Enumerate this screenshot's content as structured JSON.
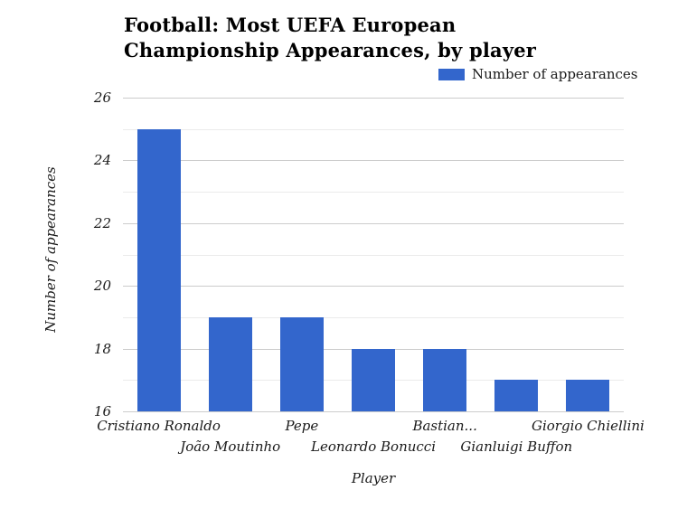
{
  "title": "Football: Most UEFA European Championship Appearances, by player",
  "legend": {
    "label": "Number of appearances",
    "swatch_color": "#3366cc"
  },
  "axes": {
    "y_title": "Number of appearances",
    "x_title": "Player"
  },
  "colors": {
    "bar": "#3366cc",
    "major_gridline": "#cccccc",
    "minor_gridline": "#ebebeb",
    "text": "#1a1a1a",
    "background": "#ffffff"
  },
  "chart_data": {
    "type": "bar",
    "title": "Football: Most UEFA European Championship Appearances, by player",
    "categories": [
      "Cristiano Ronaldo",
      "João Moutinho",
      "Pepe",
      "Leonardo Bonucci",
      "Bastian...",
      "Gianluigi Buffon",
      "Giorgio Chiellini"
    ],
    "values": [
      25,
      19,
      19,
      18,
      18,
      17,
      17
    ],
    "series_name": "Number of appearances",
    "xlabel": "Player",
    "ylabel": "Number of appearances",
    "ylim": [
      16,
      26
    ],
    "yticks": [
      16,
      18,
      20,
      22,
      24,
      26
    ],
    "minor_gridlines": [
      17,
      19,
      21,
      23,
      25
    ],
    "grid": true,
    "legend_position": "top-right",
    "bar_color": "#3366cc"
  }
}
